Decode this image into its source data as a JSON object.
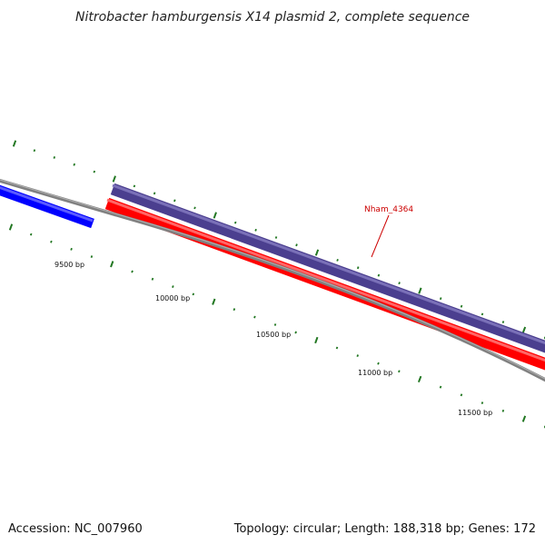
{
  "title": "Nitrobacter hamburgensis X14 plasmid 2, complete sequence",
  "footer": {
    "accession": "Accession: NC_007960",
    "summary": "Topology: circular; Length: 188,318 bp; Genes: 172"
  },
  "scale_labels": [
    "9500 bp",
    "10000 bp",
    "10500 bp",
    "11000 bp",
    "11500 bp"
  ],
  "genes": [
    {
      "name": "",
      "strand": "forward",
      "color": "#0000ff"
    },
    {
      "name": "Nham_4364",
      "strand": "forward",
      "color": "#4b3f8f"
    },
    {
      "name": "",
      "strand": "reverse",
      "color": "#ff0000"
    }
  ],
  "colors": {
    "backbone": "#808080",
    "tick": "#227722",
    "label_callout": "#cc0000"
  }
}
